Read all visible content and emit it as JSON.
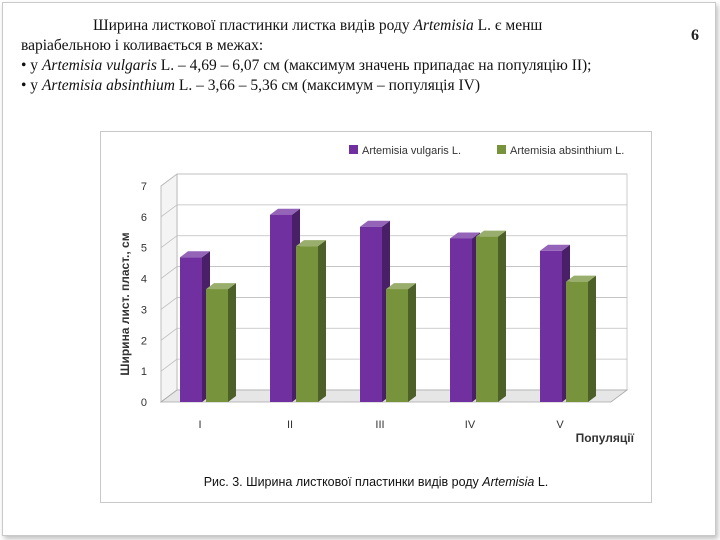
{
  "page_number": "6",
  "intro": {
    "line1": "Ширина листкової пластинки листка видів роду ",
    "genus": "Artemisia",
    "line1_tail": " L. є менш",
    "line2": "варіабельною і коливається в межах:",
    "item1_prefix": "• у ",
    "item1_species": "Artemisia vulgaris",
    "item1_tail": " L. – 4,69 – 6,07 см (максимум значень припадає на популяцію II);",
    "item2_prefix": "• у ",
    "item2_species": "Artemisia absinthium",
    "item2_tail": " L. – 3,66 – 5,36 см (максимум – популяція IV)"
  },
  "caption": {
    "prefix": "Рис. 3. Ширина листкової пластинки видів роду ",
    "genus": "Artemisia",
    "suffix": " L."
  },
  "chart_data": {
    "type": "bar",
    "title": "",
    "xlabel": "Популяції",
    "ylabel": "Ширина лист. пласт., см",
    "categories": [
      "I",
      "II",
      "III",
      "IV",
      "V"
    ],
    "ylim": [
      0,
      7
    ],
    "yticks": [
      "0",
      "1",
      "2",
      "3",
      "4",
      "5",
      "6",
      "7"
    ],
    "grid": true,
    "legend_position": "top-right",
    "series": [
      {
        "name": "Artemisia vulgaris L.",
        "color": "#7030a0",
        "values": [
          4.69,
          6.07,
          5.68,
          5.3,
          4.9
        ]
      },
      {
        "name": "Artemisia absinthium L.",
        "color": "#77933c",
        "values": [
          3.66,
          5.05,
          3.66,
          5.36,
          3.9
        ]
      }
    ]
  }
}
